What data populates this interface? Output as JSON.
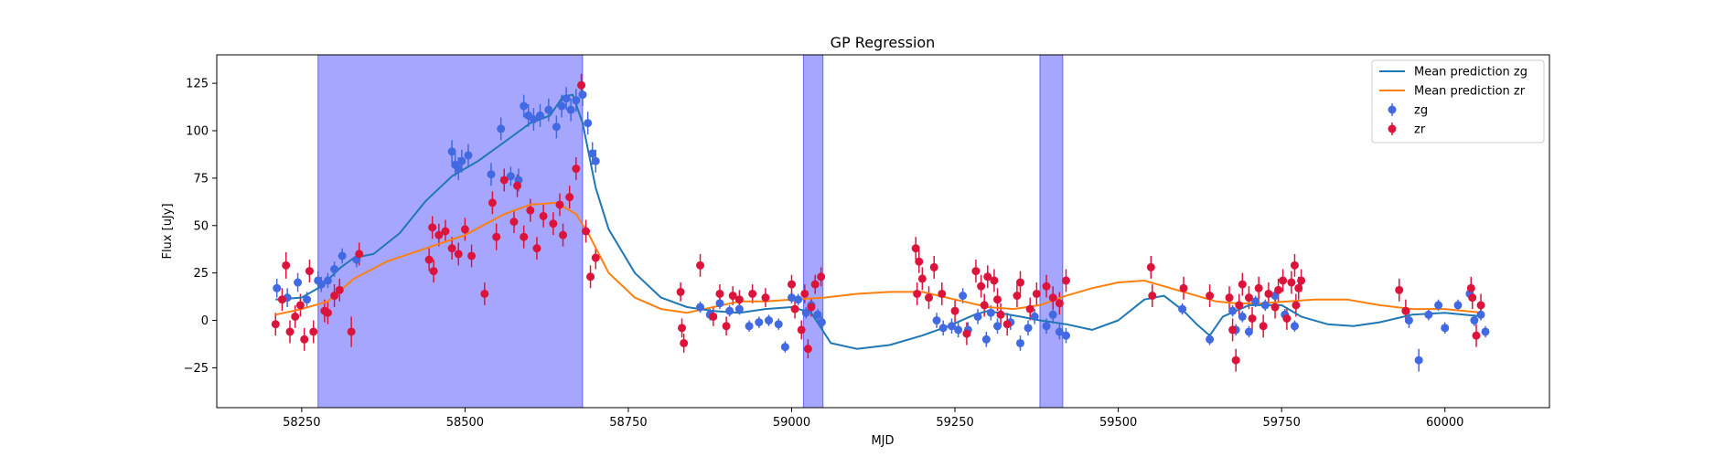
{
  "chart_data": {
    "type": "scatter",
    "title": "GP Regression",
    "xlabel": "MJD",
    "ylabel": "Flux [uJy]",
    "xlim": [
      58120,
      60160
    ],
    "ylim": [
      -46,
      140
    ],
    "xticks": [
      58250,
      58500,
      58750,
      59000,
      59250,
      59500,
      59750,
      60000
    ],
    "yticks": [
      -25,
      0,
      25,
      50,
      75,
      100,
      125
    ],
    "grid": false,
    "legend_position": "top-right",
    "colors": {
      "zg_line": "#1f77b4",
      "zr_line": "#ff7f0e",
      "zg_points": "#4169e1",
      "zr_points": "#dc143c",
      "shade": "#0000ff"
    },
    "shaded_regions": [
      [
        58275,
        58680
      ],
      [
        59018,
        59048
      ],
      [
        59380,
        59415
      ]
    ],
    "legend": [
      {
        "label": "Mean prediction zg",
        "kind": "line",
        "series": "zg_line"
      },
      {
        "label": "Mean prediction zr",
        "kind": "line",
        "series": "zr_line"
      },
      {
        "label": "zg",
        "kind": "errorpoint",
        "series": "zg_points"
      },
      {
        "label": "zr",
        "kind": "errorpoint",
        "series": "zr_points"
      }
    ],
    "mean_prediction_zg": [
      [
        58210,
        11
      ],
      [
        58250,
        12
      ],
      [
        58280,
        18
      ],
      [
        58310,
        28
      ],
      [
        58330,
        33
      ],
      [
        58360,
        35
      ],
      [
        58400,
        46
      ],
      [
        58440,
        63
      ],
      [
        58480,
        76
      ],
      [
        58520,
        84
      ],
      [
        58560,
        94
      ],
      [
        58600,
        104
      ],
      [
        58630,
        108
      ],
      [
        58650,
        118
      ],
      [
        58665,
        119
      ],
      [
        58680,
        104
      ],
      [
        58700,
        70
      ],
      [
        58720,
        48
      ],
      [
        58760,
        25
      ],
      [
        58800,
        12
      ],
      [
        58840,
        7
      ],
      [
        58880,
        5
      ],
      [
        58920,
        4
      ],
      [
        58960,
        6
      ],
      [
        59000,
        7
      ],
      [
        59030,
        4
      ],
      [
        59060,
        -12
      ],
      [
        59100,
        -15
      ],
      [
        59150,
        -13
      ],
      [
        59200,
        -8
      ],
      [
        59240,
        -3
      ],
      [
        59280,
        3
      ],
      [
        59300,
        5
      ],
      [
        59350,
        2
      ],
      [
        59380,
        0
      ],
      [
        59420,
        -2
      ],
      [
        59460,
        -5
      ],
      [
        59500,
        0
      ],
      [
        59540,
        11
      ],
      [
        59570,
        13
      ],
      [
        59600,
        5
      ],
      [
        59620,
        -2
      ],
      [
        59640,
        -8
      ],
      [
        59660,
        2
      ],
      [
        59700,
        8
      ],
      [
        59750,
        8
      ],
      [
        59780,
        2
      ],
      [
        59820,
        -2
      ],
      [
        59860,
        -3
      ],
      [
        59900,
        -1
      ],
      [
        59950,
        3
      ],
      [
        60000,
        4
      ],
      [
        60060,
        2
      ]
    ],
    "mean_prediction_zr": [
      [
        58210,
        3
      ],
      [
        58250,
        6
      ],
      [
        58290,
        10
      ],
      [
        58330,
        22
      ],
      [
        58380,
        31
      ],
      [
        58440,
        38
      ],
      [
        58500,
        45
      ],
      [
        58560,
        56
      ],
      [
        58600,
        61
      ],
      [
        58640,
        62
      ],
      [
        58670,
        56
      ],
      [
        58690,
        45
      ],
      [
        58720,
        25
      ],
      [
        58760,
        12
      ],
      [
        58800,
        6
      ],
      [
        58840,
        4
      ],
      [
        58880,
        7
      ],
      [
        58920,
        10
      ],
      [
        58960,
        10
      ],
      [
        59000,
        11
      ],
      [
        59050,
        12
      ],
      [
        59100,
        14
      ],
      [
        59150,
        15
      ],
      [
        59200,
        15
      ],
      [
        59250,
        11
      ],
      [
        59300,
        7
      ],
      [
        59340,
        6
      ],
      [
        59380,
        8
      ],
      [
        59420,
        13
      ],
      [
        59460,
        17
      ],
      [
        59500,
        20
      ],
      [
        59540,
        21
      ],
      [
        59580,
        17
      ],
      [
        59620,
        13
      ],
      [
        59650,
        10
      ],
      [
        59680,
        9
      ],
      [
        59720,
        9
      ],
      [
        59760,
        10
      ],
      [
        59800,
        11
      ],
      [
        59850,
        11
      ],
      [
        59900,
        8
      ],
      [
        59950,
        6
      ],
      [
        60000,
        6
      ],
      [
        60060,
        4
      ]
    ],
    "zg_points": [
      [
        58212,
        17,
        5
      ],
      [
        58228,
        12,
        5
      ],
      [
        58244,
        20,
        5
      ],
      [
        58258,
        11,
        4
      ],
      [
        58275,
        21,
        5
      ],
      [
        58280,
        19,
        4
      ],
      [
        58290,
        21,
        4
      ],
      [
        58300,
        27,
        4
      ],
      [
        58312,
        34,
        4
      ],
      [
        58334,
        32,
        4
      ],
      [
        58480,
        89,
        6
      ],
      [
        58485,
        82,
        6
      ],
      [
        58490,
        80,
        6
      ],
      [
        58495,
        84,
        6
      ],
      [
        58505,
        87,
        6
      ],
      [
        58540,
        77,
        6
      ],
      [
        58555,
        101,
        6
      ],
      [
        58570,
        76,
        5
      ],
      [
        58582,
        74,
        6
      ],
      [
        58590,
        113,
        6
      ],
      [
        58597,
        108,
        6
      ],
      [
        58605,
        106,
        6
      ],
      [
        58615,
        108,
        6
      ],
      [
        58628,
        111,
        6
      ],
      [
        58640,
        102,
        6
      ],
      [
        58648,
        113,
        6
      ],
      [
        58655,
        117,
        6
      ],
      [
        58662,
        111,
        6
      ],
      [
        58670,
        116,
        6
      ],
      [
        58680,
        119,
        6
      ],
      [
        58688,
        104,
        6
      ],
      [
        58695,
        88,
        6
      ],
      [
        58700,
        84,
        6
      ],
      [
        58860,
        7,
        3
      ],
      [
        58875,
        3,
        3
      ],
      [
        58890,
        9,
        3
      ],
      [
        58905,
        5,
        3
      ],
      [
        58920,
        6,
        3
      ],
      [
        58935,
        -3,
        3
      ],
      [
        58950,
        -1,
        3
      ],
      [
        58965,
        0,
        3
      ],
      [
        58980,
        -2,
        3
      ],
      [
        58990,
        -14,
        3
      ],
      [
        59000,
        12,
        3
      ],
      [
        59010,
        11,
        3
      ],
      [
        59022,
        4,
        3
      ],
      [
        59030,
        8,
        3
      ],
      [
        59040,
        3,
        3
      ],
      [
        59046,
        -1,
        3
      ],
      [
        59222,
        0,
        4
      ],
      [
        59232,
        -4,
        4
      ],
      [
        59245,
        -3,
        4
      ],
      [
        59255,
        -5,
        4
      ],
      [
        59262,
        13,
        4
      ],
      [
        59270,
        -5,
        4
      ],
      [
        59285,
        2,
        4
      ],
      [
        59298,
        -10,
        4
      ],
      [
        59305,
        4,
        4
      ],
      [
        59315,
        -3,
        4
      ],
      [
        59335,
        -1,
        4
      ],
      [
        59350,
        -12,
        4
      ],
      [
        59362,
        -4,
        4
      ],
      [
        59372,
        2,
        4
      ],
      [
        59390,
        -3,
        4
      ],
      [
        59400,
        3,
        4
      ],
      [
        59410,
        -6,
        4
      ],
      [
        59420,
        -8,
        4
      ],
      [
        59598,
        6,
        3
      ],
      [
        59640,
        -10,
        3
      ],
      [
        59675,
        5,
        3
      ],
      [
        59680,
        -5,
        3
      ],
      [
        59690,
        2,
        3
      ],
      [
        59700,
        -6,
        3
      ],
      [
        59710,
        10,
        3
      ],
      [
        59725,
        8,
        3
      ],
      [
        59740,
        13,
        3
      ],
      [
        59755,
        3,
        3
      ],
      [
        59770,
        -3,
        3
      ],
      [
        59945,
        0,
        4
      ],
      [
        59960,
        -21,
        6
      ],
      [
        59975,
        3,
        3
      ],
      [
        59990,
        8,
        3
      ],
      [
        60000,
        -4,
        3
      ],
      [
        60020,
        8,
        3
      ],
      [
        60038,
        14,
        3
      ],
      [
        60045,
        0,
        3
      ],
      [
        60055,
        3,
        3
      ],
      [
        60062,
        -6,
        3
      ]
    ],
    "zr_points": [
      [
        58210,
        -2,
        6
      ],
      [
        58220,
        11,
        6
      ],
      [
        58226,
        29,
        7
      ],
      [
        58232,
        -6,
        6
      ],
      [
        58240,
        2,
        6
      ],
      [
        58248,
        8,
        6
      ],
      [
        58254,
        -10,
        6
      ],
      [
        58262,
        26,
        6
      ],
      [
        58268,
        -6,
        6
      ],
      [
        58285,
        5,
        6
      ],
      [
        58290,
        4,
        6
      ],
      [
        58300,
        13,
        6
      ],
      [
        58308,
        16,
        6
      ],
      [
        58326,
        -6,
        8
      ],
      [
        58338,
        35,
        6
      ],
      [
        58445,
        32,
        6
      ],
      [
        58450,
        49,
        6
      ],
      [
        58452,
        26,
        6
      ],
      [
        58460,
        45,
        6
      ],
      [
        58470,
        47,
        6
      ],
      [
        58480,
        38,
        6
      ],
      [
        58490,
        35,
        6
      ],
      [
        58500,
        48,
        6
      ],
      [
        58510,
        34,
        6
      ],
      [
        58530,
        14,
        6
      ],
      [
        58542,
        62,
        6
      ],
      [
        58548,
        44,
        7
      ],
      [
        58560,
        74,
        6
      ],
      [
        58575,
        52,
        6
      ],
      [
        58580,
        71,
        6
      ],
      [
        58590,
        44,
        6
      ],
      [
        58600,
        58,
        6
      ],
      [
        58610,
        38,
        6
      ],
      [
        58620,
        55,
        6
      ],
      [
        58635,
        51,
        6
      ],
      [
        58645,
        61,
        6
      ],
      [
        58650,
        45,
        6
      ],
      [
        58660,
        65,
        6
      ],
      [
        58670,
        80,
        6
      ],
      [
        58678,
        124,
        6
      ],
      [
        58685,
        47,
        6
      ],
      [
        58692,
        23,
        6
      ],
      [
        58700,
        33,
        6
      ],
      [
        58830,
        15,
        5
      ],
      [
        58832,
        -4,
        5
      ],
      [
        58835,
        -12,
        5
      ],
      [
        58860,
        29,
        6
      ],
      [
        58880,
        2,
        5
      ],
      [
        58890,
        14,
        5
      ],
      [
        58900,
        -3,
        5
      ],
      [
        58910,
        13,
        5
      ],
      [
        58920,
        11,
        5
      ],
      [
        58940,
        14,
        5
      ],
      [
        58960,
        12,
        5
      ],
      [
        59000,
        19,
        5
      ],
      [
        59005,
        6,
        5
      ],
      [
        59015,
        -5,
        5
      ],
      [
        59020,
        14,
        5
      ],
      [
        59025,
        -15,
        5
      ],
      [
        59030,
        7,
        5
      ],
      [
        59036,
        19,
        5
      ],
      [
        59045,
        23,
        5
      ],
      [
        59190,
        38,
        6
      ],
      [
        59192,
        14,
        6
      ],
      [
        59195,
        31,
        6
      ],
      [
        59200,
        22,
        6
      ],
      [
        59210,
        12,
        6
      ],
      [
        59218,
        28,
        6
      ],
      [
        59230,
        14,
        6
      ],
      [
        59250,
        5,
        6
      ],
      [
        59268,
        -7,
        6
      ],
      [
        59282,
        26,
        6
      ],
      [
        59290,
        18,
        6
      ],
      [
        59295,
        8,
        6
      ],
      [
        59300,
        23,
        6
      ],
      [
        59310,
        21,
        6
      ],
      [
        59315,
        11,
        6
      ],
      [
        59320,
        3,
        6
      ],
      [
        59330,
        -2,
        6
      ],
      [
        59345,
        13,
        6
      ],
      [
        59350,
        20,
        6
      ],
      [
        59365,
        6,
        6
      ],
      [
        59375,
        14,
        6
      ],
      [
        59390,
        18,
        6
      ],
      [
        59400,
        12,
        6
      ],
      [
        59410,
        9,
        6
      ],
      [
        59420,
        21,
        6
      ],
      [
        59550,
        28,
        6
      ],
      [
        59552,
        13,
        6
      ],
      [
        59600,
        17,
        6
      ],
      [
        59640,
        13,
        6
      ],
      [
        59670,
        12,
        6
      ],
      [
        59675,
        -5,
        6
      ],
      [
        59680,
        -21,
        6
      ],
      [
        59685,
        8,
        6
      ],
      [
        59690,
        19,
        6
      ],
      [
        59700,
        12,
        6
      ],
      [
        59705,
        1,
        6
      ],
      [
        59715,
        17,
        6
      ],
      [
        59722,
        -3,
        6
      ],
      [
        59730,
        14,
        6
      ],
      [
        59740,
        7,
        6
      ],
      [
        59745,
        16,
        6
      ],
      [
        59752,
        21,
        6
      ],
      [
        59758,
        1,
        6
      ],
      [
        59765,
        20,
        6
      ],
      [
        59770,
        29,
        6
      ],
      [
        59772,
        8,
        6
      ],
      [
        59776,
        17,
        6
      ],
      [
        59780,
        21,
        6
      ],
      [
        59930,
        16,
        6
      ],
      [
        59940,
        5,
        6
      ],
      [
        60040,
        17,
        6
      ],
      [
        60042,
        12,
        6
      ],
      [
        60048,
        -8,
        6
      ],
      [
        60055,
        8,
        6
      ]
    ]
  }
}
